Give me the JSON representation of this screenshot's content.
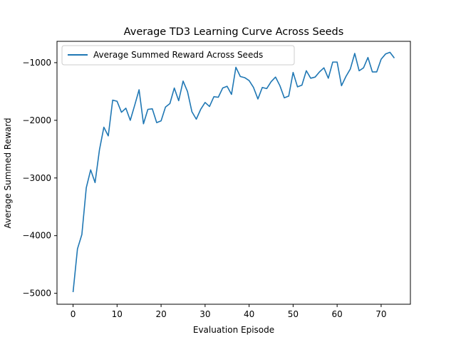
{
  "chart_data": {
    "type": "line",
    "title": "Average TD3 Learning Curve Across Seeds",
    "xlabel": "Evaluation Episode",
    "ylabel": "Average Summed Reward",
    "xlim": [
      -3.65,
      76.65
    ],
    "ylim": [
      -5190,
      -630
    ],
    "xticks": [
      0,
      10,
      20,
      30,
      40,
      50,
      60,
      70
    ],
    "yticks": [
      -5000,
      -4000,
      -3000,
      -2000,
      -1000
    ],
    "xtick_labels": [
      "0",
      "10",
      "20",
      "30",
      "40",
      "50",
      "60",
      "70"
    ],
    "ytick_labels": [
      "−5000",
      "−4000",
      "−3000",
      "−2000",
      "−1000"
    ],
    "grid": false,
    "legend_position": "upper-left",
    "color": "#1f77b4",
    "series": [
      {
        "name": "Average Summed Reward Across Seeds",
        "x": [
          0,
          1,
          2,
          3,
          4,
          5,
          6,
          7,
          8,
          9,
          10,
          11,
          12,
          13,
          14,
          15,
          16,
          17,
          18,
          19,
          20,
          21,
          22,
          23,
          24,
          25,
          26,
          27,
          28,
          29,
          30,
          31,
          32,
          33,
          34,
          35,
          36,
          37,
          38,
          39,
          40,
          41,
          42,
          43,
          44,
          45,
          46,
          47,
          48,
          49,
          50,
          51,
          52,
          53,
          54,
          55,
          56,
          57,
          58,
          59,
          60,
          61,
          62,
          63,
          64,
          65,
          66,
          67,
          68,
          69,
          70,
          71,
          72,
          73
        ],
        "y": [
          -4980,
          -4230,
          -3980,
          -3170,
          -2860,
          -3080,
          -2510,
          -2120,
          -2270,
          -1650,
          -1670,
          -1860,
          -1790,
          -2000,
          -1740,
          -1470,
          -2060,
          -1810,
          -1800,
          -2040,
          -2010,
          -1770,
          -1710,
          -1440,
          -1660,
          -1320,
          -1500,
          -1850,
          -1980,
          -1810,
          -1690,
          -1760,
          -1590,
          -1600,
          -1440,
          -1410,
          -1550,
          -1080,
          -1240,
          -1260,
          -1310,
          -1430,
          -1630,
          -1430,
          -1450,
          -1330,
          -1250,
          -1400,
          -1610,
          -1580,
          -1170,
          -1420,
          -1390,
          -1140,
          -1270,
          -1250,
          -1160,
          -1090,
          -1270,
          -990,
          -990,
          -1400,
          -1240,
          -1110,
          -840,
          -1140,
          -1090,
          -910,
          -1160,
          -1160,
          -940,
          -850,
          -820,
          -920
        ]
      }
    ]
  }
}
